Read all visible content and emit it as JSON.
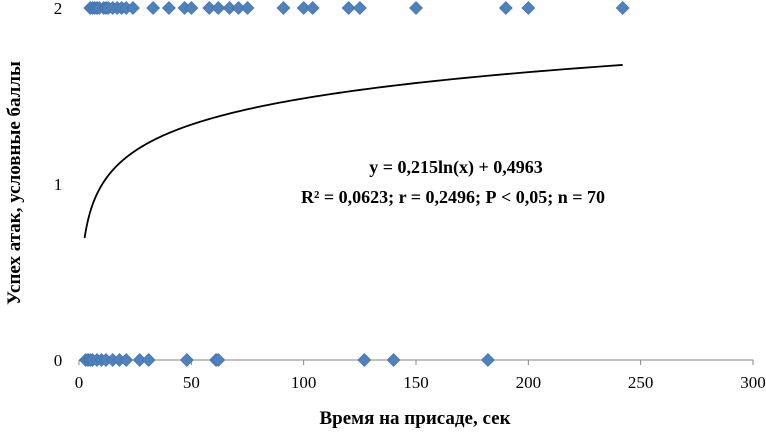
{
  "chart_data": {
    "type": "scatter",
    "xlabel": "Время на присаде, сек",
    "ylabel": "Успех атак, условные баллы",
    "xlim": [
      0,
      300
    ],
    "ylim": [
      0,
      2
    ],
    "x_ticks": [
      "0",
      "50",
      "100",
      "150",
      "200",
      "250",
      "300"
    ],
    "y_ticks": [
      "0",
      "1",
      "2"
    ],
    "grid": false,
    "marker_color": "#4F81BD",
    "trendline_color": "#000000",
    "annotation": {
      "line1": "y = 0,215ln(x) + 0,4963",
      "line2": "R² = 0,0623; r = 0,2496; Р  < 0,05; n = 70"
    },
    "trendline": {
      "type": "logarithmic",
      "a": 0.215,
      "b": 0.4963,
      "x_range": [
        2.5,
        242
      ]
    },
    "series": [
      {
        "x": [
          5,
          6,
          7,
          8,
          9,
          11,
          12,
          13,
          15,
          17,
          19,
          21,
          24,
          33,
          40,
          47,
          50,
          58,
          62,
          67,
          71,
          75,
          91,
          100,
          104,
          120,
          125,
          150,
          190,
          200,
          242,
          3,
          4,
          5,
          6,
          8,
          10,
          12,
          15,
          18,
          21,
          27,
          31,
          48,
          61,
          62,
          127,
          140,
          182
        ],
        "y": [
          2,
          2,
          2,
          2,
          2,
          2,
          2,
          2,
          2,
          2,
          2,
          2,
          2,
          2,
          2,
          2,
          2,
          2,
          2,
          2,
          2,
          2,
          2,
          2,
          2,
          2,
          2,
          2,
          2,
          2,
          2,
          0,
          0,
          0,
          0,
          0,
          0,
          0,
          0,
          0,
          0,
          0,
          0,
          0,
          0,
          0,
          0,
          0,
          0
        ]
      }
    ]
  }
}
